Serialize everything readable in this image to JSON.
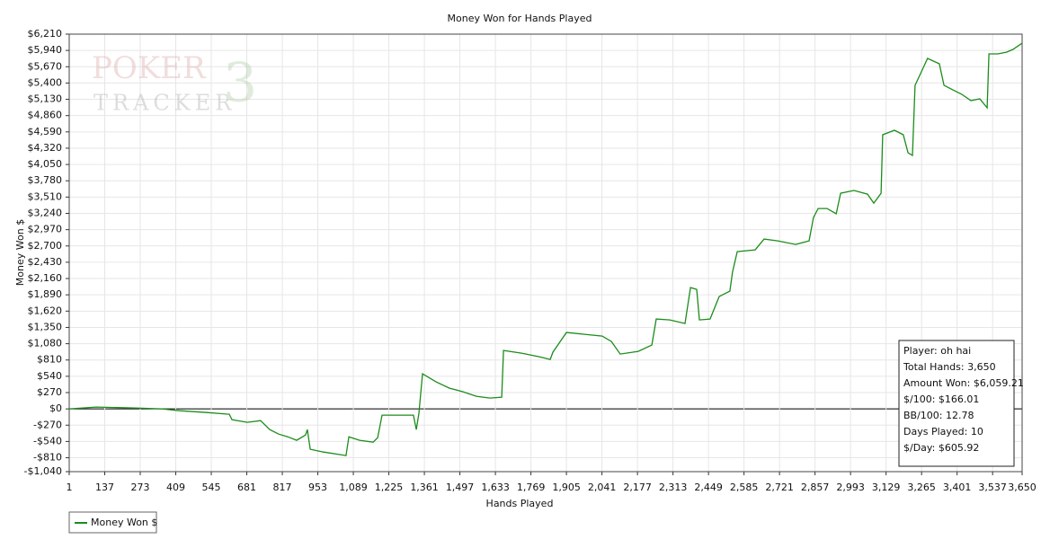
{
  "chart_data": {
    "type": "line",
    "title": "Money Won for Hands Played",
    "x_label": "Hands Played",
    "y_label": "Money Won $",
    "watermark": [
      "POKER",
      "TRACKER",
      "3"
    ],
    "grid": true,
    "legend": "bottom-left",
    "xlim": [
      1,
      3650
    ],
    "ylim": [
      -1040,
      6210
    ],
    "xticks": [
      1,
      137,
      273,
      409,
      545,
      681,
      817,
      953,
      {
        "value": 1089,
        "label": "1,089"
      },
      {
        "value": 1225,
        "label": "1,225"
      },
      {
        "value": 1361,
        "label": "1,361"
      },
      {
        "value": 1497,
        "label": "1,497"
      },
      {
        "value": 1633,
        "label": "1,633"
      },
      {
        "value": 1769,
        "label": "1,769"
      },
      {
        "value": 1905,
        "label": "1,905"
      },
      {
        "value": 2041,
        "label": "2,041"
      },
      {
        "value": 2177,
        "label": "2,177"
      },
      {
        "value": 2313,
        "label": "2,313"
      },
      {
        "value": 2449,
        "label": "2,449"
      },
      {
        "value": 2585,
        "label": "2,585"
      },
      {
        "value": 2721,
        "label": "2,721"
      },
      {
        "value": 2857,
        "label": "2,857"
      },
      {
        "value": 2993,
        "label": "2,993"
      },
      {
        "value": 3129,
        "label": "3,129"
      },
      {
        "value": 3265,
        "label": "3,265"
      },
      {
        "value": 3401,
        "label": "3,401"
      },
      {
        "value": 3537,
        "label": "3,537"
      },
      {
        "value": 3650,
        "label": "3,650"
      }
    ],
    "yticks": [
      {
        "value": -1040,
        "label": "-$1,040"
      },
      {
        "value": -810,
        "label": "-$810"
      },
      {
        "value": -540,
        "label": "-$540"
      },
      {
        "value": -270,
        "label": "-$270"
      },
      {
        "value": 0,
        "label": "$0"
      },
      {
        "value": 270,
        "label": "$270"
      },
      {
        "value": 540,
        "label": "$540"
      },
      {
        "value": 810,
        "label": "$810"
      },
      {
        "value": 1080,
        "label": "$1,080"
      },
      {
        "value": 1350,
        "label": "$1,350"
      },
      {
        "value": 1620,
        "label": "$1,620"
      },
      {
        "value": 1890,
        "label": "$1,890"
      },
      {
        "value": 2160,
        "label": "$2,160"
      },
      {
        "value": 2430,
        "label": "$2,430"
      },
      {
        "value": 2700,
        "label": "$2,700"
      },
      {
        "value": 2970,
        "label": "$2,970"
      },
      {
        "value": 3240,
        "label": "$3,240"
      },
      {
        "value": 3510,
        "label": "$3,510"
      },
      {
        "value": 3780,
        "label": "$3,780"
      },
      {
        "value": 4050,
        "label": "$4,050"
      },
      {
        "value": 4320,
        "label": "$4,320"
      },
      {
        "value": 4590,
        "label": "$4,590"
      },
      {
        "value": 4860,
        "label": "$4,860"
      },
      {
        "value": 5130,
        "label": "$5,130"
      },
      {
        "value": 5400,
        "label": "$5,400"
      },
      {
        "value": 5670,
        "label": "$5,670"
      },
      {
        "value": 5940,
        "label": "$5,940"
      },
      {
        "value": 6210,
        "label": "$6,210"
      }
    ],
    "x": [
      1,
      104,
      252,
      356,
      424,
      528,
      614,
      624,
      683,
      734,
      769,
      803,
      838,
      872,
      906,
      913,
      924,
      975,
      1061,
      1072,
      1113,
      1165,
      1182,
      1199,
      1251,
      1319,
      1330,
      1340,
      1354,
      1406,
      1457,
      1509,
      1560,
      1612,
      1657,
      1664,
      1733,
      1801,
      1843,
      1853,
      1905,
      1974,
      2042,
      2077,
      2111,
      2180,
      2232,
      2249,
      2301,
      2359,
      2380,
      2404,
      2414,
      2455,
      2490,
      2531,
      2541,
      2559,
      2628,
      2662,
      2714,
      2783,
      2834,
      2851,
      2869,
      2903,
      2938,
      2955,
      3006,
      3058,
      3082,
      3110,
      3116,
      3161,
      3195,
      3213,
      3230,
      3240,
      3264,
      3288,
      3333,
      3351,
      3385,
      3419,
      3454,
      3488,
      3516,
      3523,
      3557,
      3591,
      3615,
      3650
    ],
    "series": [
      {
        "name": "Money Won $",
        "color": "#1b8c1b",
        "values": [
          0,
          30,
          15,
          0,
          -30,
          -60,
          -89,
          -179,
          -223,
          -194,
          -343,
          -417,
          -462,
          -521,
          -432,
          -343,
          -670,
          -715,
          -774,
          -462,
          -521,
          -551,
          -477,
          -104,
          -104,
          -104,
          -343,
          -74,
          581,
          447,
          343,
          283,
          209,
          179,
          194,
          968,
          923,
          864,
          819,
          938,
          1266,
          1236,
          1206,
          1117,
          908,
          953,
          1057,
          1489,
          1474,
          1415,
          2010,
          1981,
          1474,
          1489,
          1862,
          1951,
          2263,
          2606,
          2636,
          2815,
          2785,
          2725,
          2785,
          3172,
          3321,
          3321,
          3232,
          3574,
          3619,
          3559,
          3410,
          3574,
          4542,
          4617,
          4542,
          4244,
          4200,
          5361,
          5584,
          5808,
          5719,
          5361,
          5286,
          5212,
          5108,
          5138,
          4989,
          5882,
          5882,
          5912,
          5957,
          6059
        ]
      }
    ],
    "info_box": [
      "Player: oh hai",
      "Total Hands: 3,650",
      "Amount Won: $6,059.21",
      "$/100: $166.01",
      "BB/100: 12.78",
      "Days Played: 10",
      "$/Day: $605.92"
    ]
  }
}
